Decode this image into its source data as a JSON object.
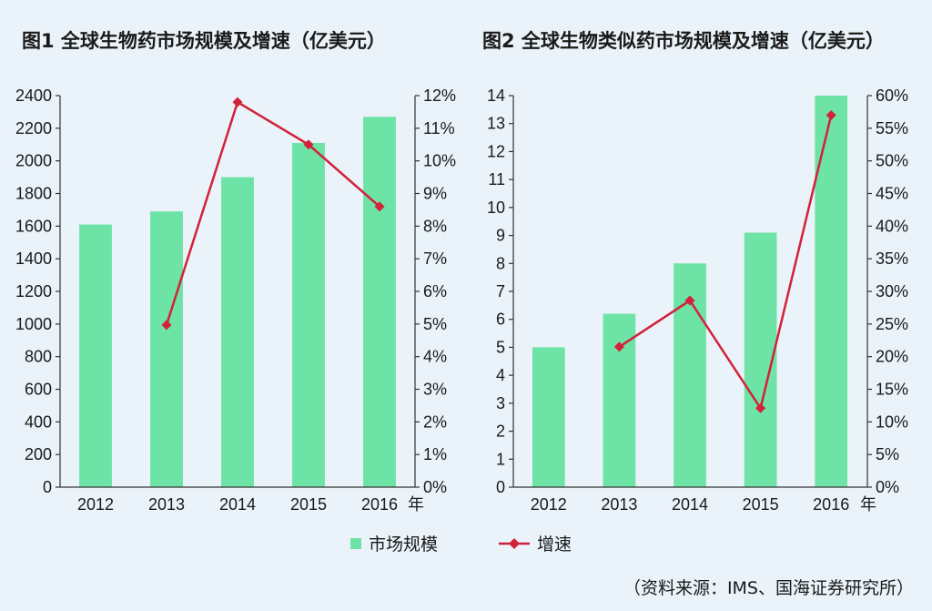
{
  "colors": {
    "bar": "#6ee3a6",
    "line": "#d2213a",
    "text": "#1a1a1a",
    "background": "#eaf3f9"
  },
  "legend": {
    "bar_label": "市场规模",
    "line_label": "增速"
  },
  "source": "（资料来源：IMS、国海证券研究所）",
  "chart_data": [
    {
      "title": "图1  全球生物药市场规模及增速（亿美元）",
      "type": "bar",
      "categories": [
        "2012",
        "2013",
        "2014",
        "2015",
        "2016"
      ],
      "x_unit": "年",
      "series": [
        {
          "name": "市场规模",
          "type": "bar",
          "axis": "left",
          "values": [
            1610,
            1690,
            1900,
            2110,
            2270
          ]
        },
        {
          "name": "增速",
          "type": "line",
          "axis": "right",
          "values": [
            null,
            4.97,
            11.8,
            10.5,
            8.6
          ]
        }
      ],
      "ylim_left": [
        0,
        2400
      ],
      "yticks_left": [
        "0",
        "200",
        "400",
        "600",
        "800",
        "1000",
        "1200",
        "1400",
        "1600",
        "1800",
        "2000",
        "2200",
        "2400"
      ],
      "ylim_right": [
        0,
        12
      ],
      "yticks_right": [
        "0%",
        "1%",
        "2%",
        "3%",
        "4%",
        "5%",
        "6%",
        "7%",
        "8%",
        "9%",
        "10%",
        "11%",
        "12%"
      ],
      "grid": false
    },
    {
      "title": "图2  全球生物类似药市场规模及增速（亿美元）",
      "type": "bar",
      "categories": [
        "2012",
        "2013",
        "2014",
        "2015",
        "2016"
      ],
      "x_unit": "年",
      "series": [
        {
          "name": "市场规模",
          "type": "bar",
          "axis": "left",
          "values": [
            5.0,
            6.2,
            8.0,
            9.1,
            14.0
          ]
        },
        {
          "name": "增速",
          "type": "line",
          "axis": "right",
          "values": [
            null,
            21.5,
            28.6,
            12.1,
            57.0
          ]
        }
      ],
      "ylim_left": [
        0,
        14
      ],
      "yticks_left": [
        "0",
        "1",
        "2",
        "3",
        "4",
        "5",
        "6",
        "7",
        "8",
        "9",
        "10",
        "11",
        "12",
        "13",
        "14"
      ],
      "ylim_right": [
        0,
        60
      ],
      "yticks_right": [
        "0%",
        "5%",
        "10%",
        "15%",
        "20%",
        "25%",
        "30%",
        "35%",
        "40%",
        "45%",
        "50%",
        "55%",
        "60%"
      ],
      "grid": false
    }
  ]
}
